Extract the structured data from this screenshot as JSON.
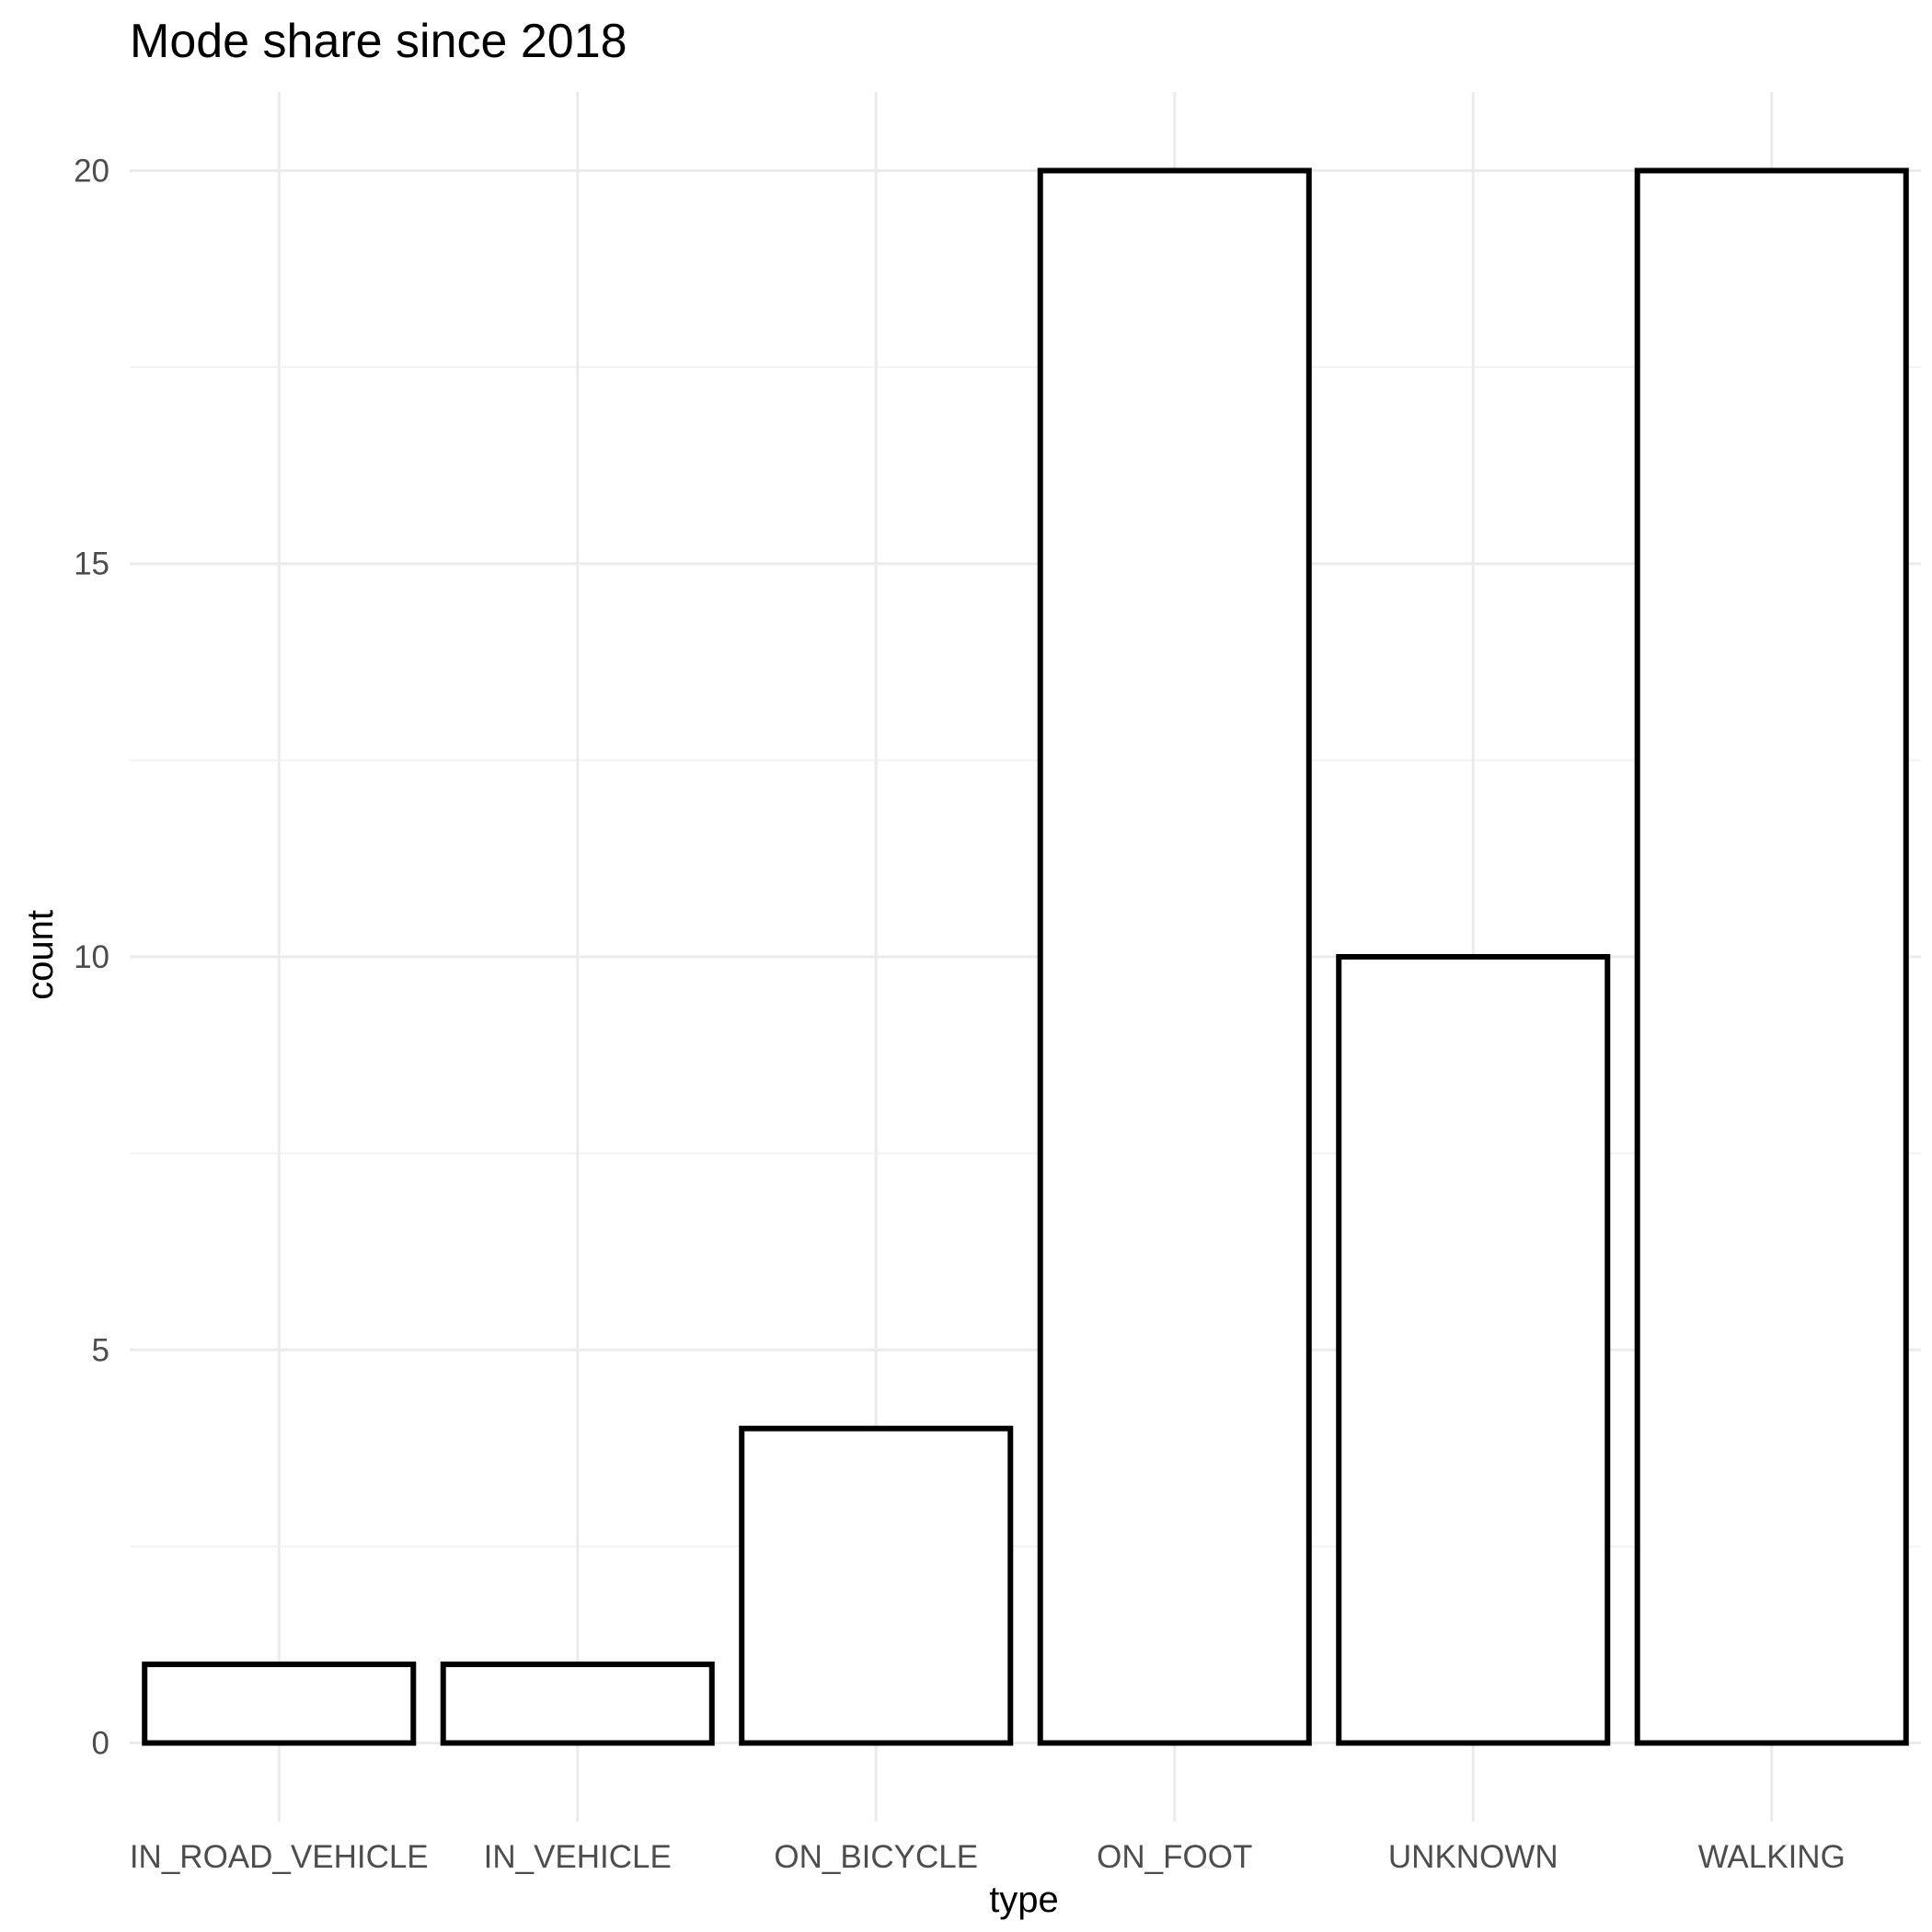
{
  "chart_data": {
    "type": "bar",
    "title": "Mode share since 2018",
    "xlabel": "type",
    "ylabel": "count",
    "categories": [
      "IN_ROAD_VEHICLE",
      "IN_VEHICLE",
      "ON_BICYCLE",
      "ON_FOOT",
      "UNKNOWN",
      "WALKING"
    ],
    "values": [
      1,
      1,
      4,
      20,
      10,
      20
    ],
    "ylim": [
      -1,
      21
    ],
    "yticks": [
      0,
      5,
      10,
      15,
      20
    ],
    "ytick_labels": [
      "0",
      "5",
      "10",
      "15",
      "20"
    ],
    "grid": true,
    "legend": "none",
    "colors": {
      "bar_fill": "#ffffff",
      "bar_outline": "#000000",
      "gridline": "#ebebeb",
      "tick_text": "#4d4d4d"
    }
  }
}
